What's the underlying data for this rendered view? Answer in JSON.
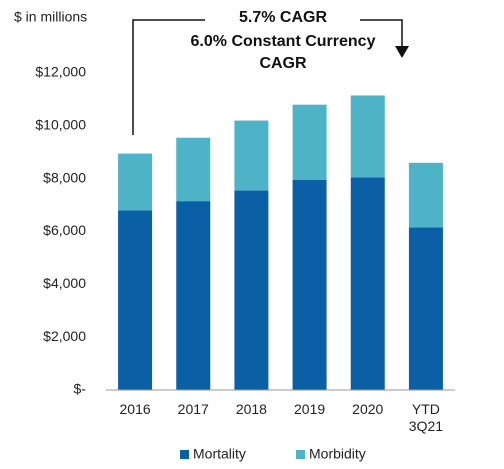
{
  "chart_data": {
    "type": "stacked_bar",
    "y_label": "$ in millions",
    "annotation": [
      "5.7% CAGR",
      "6.0% Constant Currency",
      "CAGR"
    ],
    "categories": [
      "2016",
      "2017",
      "2018",
      "2019",
      "2020",
      "YTD 3Q21"
    ],
    "series": [
      {
        "name": "Mortality",
        "color": "#0b5fa5",
        "values": [
          6800,
          7150,
          7550,
          7950,
          8050,
          6150
        ]
      },
      {
        "name": "Morbidity",
        "color": "#4fb3c8",
        "values": [
          2150,
          2400,
          2650,
          2850,
          3100,
          2450
        ]
      }
    ],
    "ylim": [
      0,
      12000
    ],
    "yticks": [
      {
        "value": 0,
        "label": "$-"
      },
      {
        "value": 2000,
        "label": "$2,000"
      },
      {
        "value": 4000,
        "label": "$4,000"
      },
      {
        "value": 6000,
        "label": "$6,000"
      },
      {
        "value": 8000,
        "label": "$8,000"
      },
      {
        "value": 10000,
        "label": "$10,000"
      },
      {
        "value": 12000,
        "label": "$12,000"
      }
    ],
    "grid": false,
    "legend": "bottom"
  }
}
